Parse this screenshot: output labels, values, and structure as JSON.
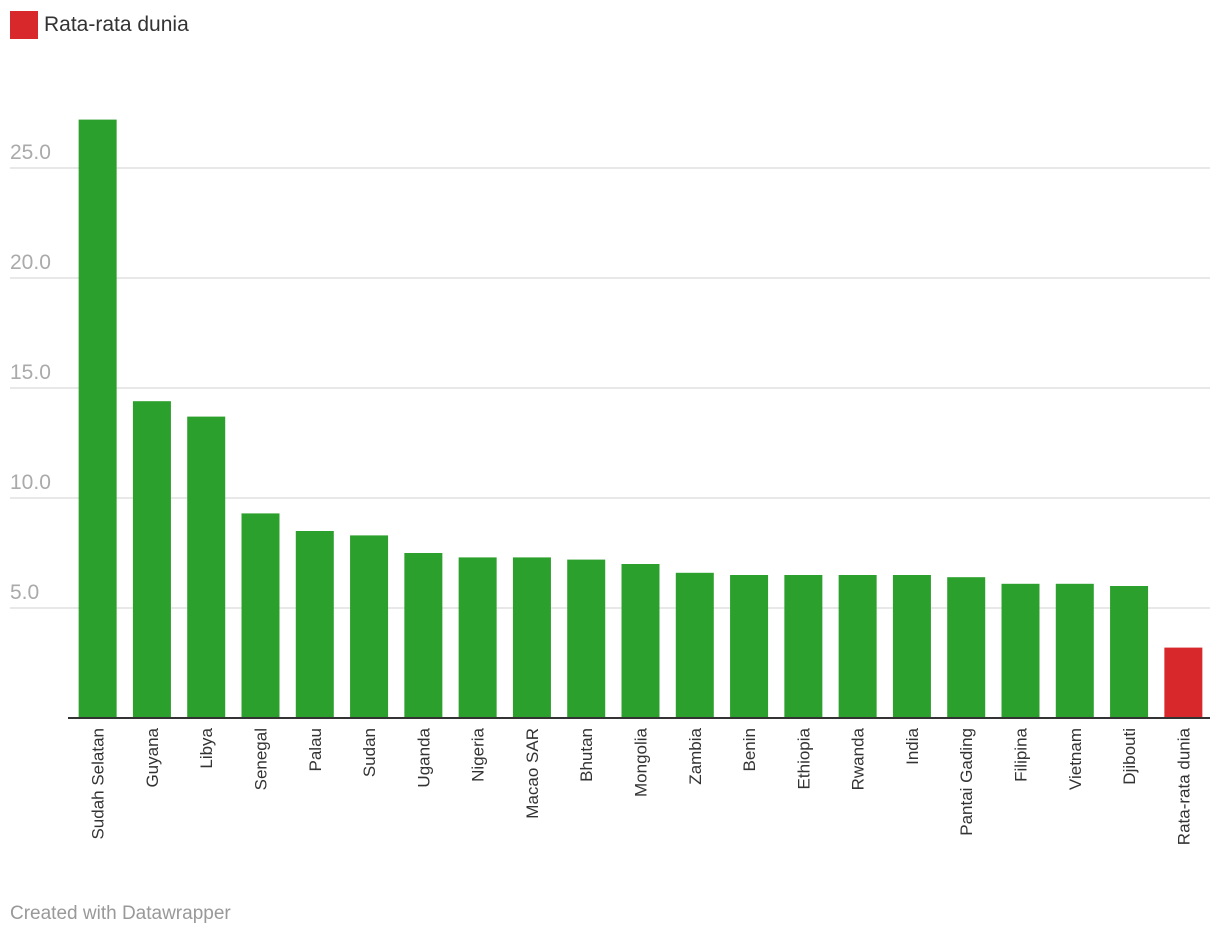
{
  "legend": {
    "label": "Rata-rata dunia",
    "color": "#d8282b"
  },
  "credit": "Created with Datawrapper",
  "colors": {
    "bar": "#2ca02c",
    "highlight": "#d8282b",
    "grid": "#e0e0e0",
    "axis": "#333333",
    "tick_text": "#aaaaaa"
  },
  "chart_data": {
    "type": "bar",
    "categories": [
      "Sudah Selatan",
      "Guyana",
      "Libya",
      "Senegal",
      "Palau",
      "Sudan",
      "Uganda",
      "Nigeria",
      "Macao SAR",
      "Bhutan",
      "Mongolia",
      "Zambia",
      "Benin",
      "Ethiopia",
      "Rwanda",
      "India",
      "Pantai Gading",
      "Filipina",
      "Vietnam",
      "Djibouti",
      "Rata-rata dunia"
    ],
    "values": [
      27.2,
      14.4,
      13.7,
      9.3,
      8.5,
      8.3,
      7.5,
      7.3,
      7.3,
      7.2,
      7.0,
      6.6,
      6.5,
      6.5,
      6.5,
      6.5,
      6.4,
      6.1,
      6.1,
      6.0,
      3.2
    ],
    "highlight": [
      "Rata-rata dunia"
    ],
    "ylim": [
      0,
      27.5
    ],
    "yticks": [
      "5.0",
      "10.0",
      "15.0",
      "20.0",
      "25.0"
    ],
    "grid": true,
    "xlabel": "",
    "ylabel": "",
    "legend_position": "top-left"
  }
}
